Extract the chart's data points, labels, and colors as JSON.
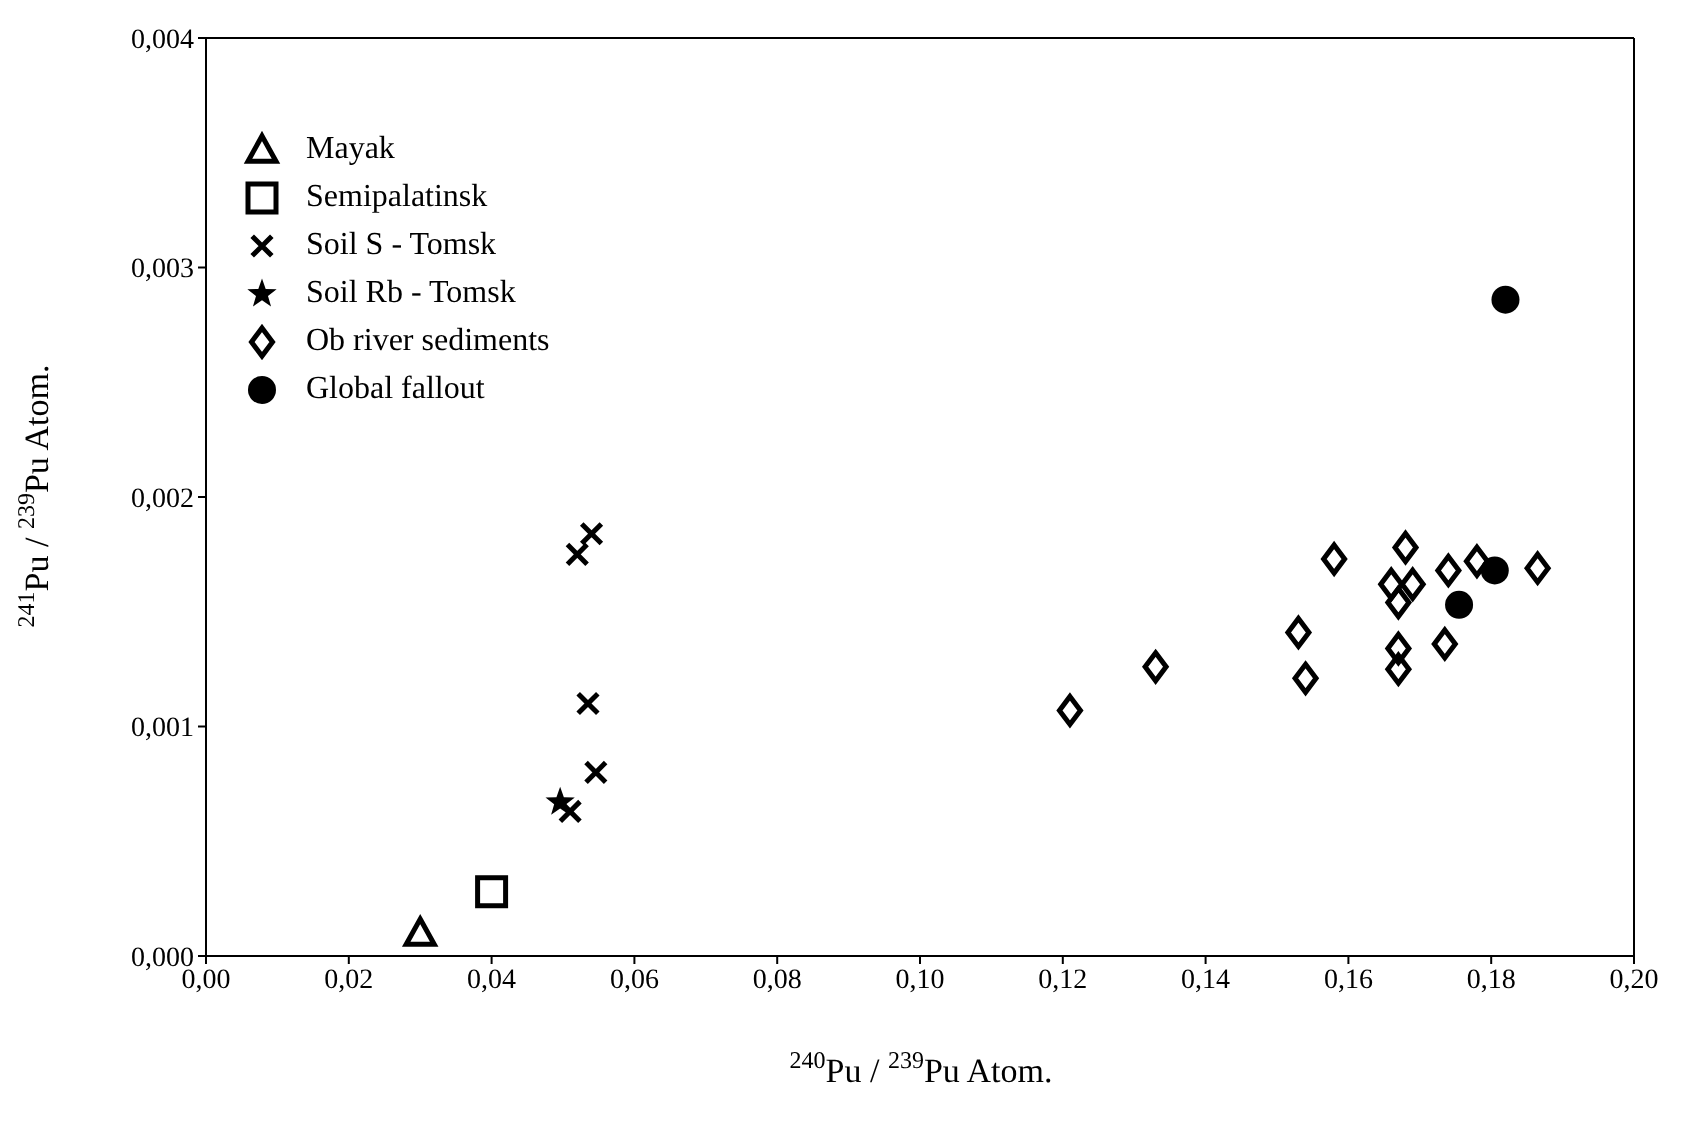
{
  "chart_data": {
    "type": "scatter",
    "xlabel": "$^{240}$Pu / $^{239}$Pu Atom.",
    "ylabel": "$^{241}$Pu / $^{239}$Pu Atom.",
    "xlim": [
      0,
      0.2
    ],
    "ylim": [
      0,
      0.004
    ],
    "xticks": [
      {
        "value": 0,
        "label": "0,00"
      },
      {
        "value": 0.02,
        "label": "0,02"
      },
      {
        "value": 0.04,
        "label": "0,04"
      },
      {
        "value": 0.06,
        "label": "0,06"
      },
      {
        "value": 0.08,
        "label": "0,08"
      },
      {
        "value": 0.1,
        "label": "0,10"
      },
      {
        "value": 0.12,
        "label": "0,12"
      },
      {
        "value": 0.14,
        "label": "0,14"
      },
      {
        "value": 0.16,
        "label": "0,16"
      },
      {
        "value": 0.18,
        "label": "0,18"
      },
      {
        "value": 0.2,
        "label": "0,20"
      }
    ],
    "yticks": [
      {
        "value": 0,
        "label": "0,000"
      },
      {
        "value": 0.001,
        "label": "0,001"
      },
      {
        "value": 0.002,
        "label": "0,002"
      },
      {
        "value": 0.003,
        "label": "0,003"
      },
      {
        "value": 0.004,
        "label": "0,004"
      }
    ],
    "legend": "top left",
    "series": [
      {
        "name": "Mayak",
        "color": "#000000",
        "marker": "triangle",
        "x": [
          0.03
        ],
        "values": [
          0.0001
        ]
      },
      {
        "name": "Semipalatinsk",
        "color": "#000000",
        "marker": "square",
        "x": [
          0.04
        ],
        "values": [
          0.00028
        ]
      },
      {
        "name": "Soil S - Tomsk",
        "color": "#000000",
        "marker": "cross",
        "x": [
          0.054,
          0.052,
          0.0535,
          0.0546,
          0.051
        ],
        "values": [
          0.00184,
          0.00175,
          0.0011,
          0.0008,
          0.00063
        ]
      },
      {
        "name": "Soil Rb - Tomsk",
        "color": "#000000",
        "marker": "star",
        "x": [
          0.0496
        ],
        "values": [
          0.00067
        ]
      },
      {
        "name": "Ob river sediments",
        "color": "#000000",
        "marker": "diamond",
        "x": [
          0.121,
          0.133,
          0.153,
          0.154,
          0.158,
          0.168,
          0.166,
          0.169,
          0.167,
          0.167,
          0.167,
          0.174,
          0.178,
          0.1735,
          0.1865
        ],
        "values": [
          0.00107,
          0.00126,
          0.00141,
          0.00121,
          0.00173,
          0.00178,
          0.00162,
          0.00162,
          0.00154,
          0.00134,
          0.00125,
          0.00168,
          0.00172,
          0.00136,
          0.00169
        ]
      },
      {
        "name": "Global fallout",
        "color": "#000000",
        "marker": "circle",
        "x": [
          0.1755,
          0.1805,
          0.182
        ],
        "values": [
          0.00153,
          0.00168,
          0.00286
        ]
      }
    ]
  }
}
